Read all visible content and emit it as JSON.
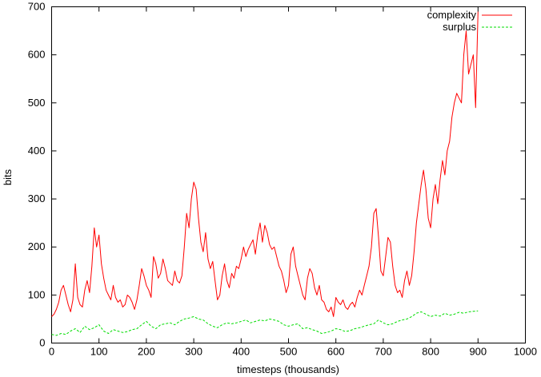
{
  "chart_data": {
    "type": "line",
    "title": "",
    "xlabel": "timesteps (thousands)",
    "ylabel": "bits",
    "xlim": [
      0,
      1000
    ],
    "ylim": [
      0,
      700
    ],
    "xticks": [
      0,
      100,
      200,
      300,
      400,
      500,
      600,
      700,
      800,
      900,
      1000
    ],
    "yticks": [
      0,
      100,
      200,
      300,
      400,
      500,
      600,
      700
    ],
    "grid": false,
    "legend": "top-right",
    "series": [
      {
        "name": "complexity",
        "color": "#ff0000",
        "dash": "solid",
        "x": [
          0,
          5,
          10,
          15,
          20,
          25,
          30,
          35,
          40,
          45,
          50,
          55,
          60,
          65,
          70,
          75,
          80,
          85,
          90,
          95,
          100,
          105,
          110,
          115,
          120,
          125,
          130,
          135,
          140,
          145,
          150,
          155,
          160,
          165,
          170,
          175,
          180,
          185,
          190,
          195,
          200,
          205,
          210,
          215,
          220,
          225,
          230,
          235,
          240,
          245,
          250,
          255,
          260,
          265,
          270,
          275,
          280,
          285,
          290,
          295,
          300,
          305,
          310,
          315,
          320,
          325,
          330,
          335,
          340,
          345,
          350,
          355,
          360,
          365,
          370,
          375,
          380,
          385,
          390,
          395,
          400,
          405,
          410,
          415,
          420,
          425,
          430,
          435,
          440,
          445,
          450,
          455,
          460,
          465,
          470,
          475,
          480,
          485,
          490,
          495,
          500,
          505,
          510,
          515,
          520,
          525,
          530,
          535,
          540,
          545,
          550,
          555,
          560,
          565,
          570,
          575,
          580,
          585,
          590,
          595,
          600,
          605,
          610,
          615,
          620,
          625,
          630,
          635,
          640,
          645,
          650,
          655,
          660,
          665,
          670,
          675,
          680,
          685,
          690,
          695,
          700,
          705,
          710,
          715,
          720,
          725,
          730,
          735,
          740,
          745,
          750,
          755,
          760,
          765,
          770,
          775,
          780,
          785,
          790,
          795,
          800,
          805,
          810,
          815,
          820,
          825,
          830,
          835,
          840,
          845,
          850,
          855,
          860,
          865,
          870,
          875,
          880,
          885,
          890,
          895,
          900
        ],
        "y": [
          55,
          60,
          70,
          85,
          110,
          120,
          100,
          80,
          65,
          90,
          165,
          95,
          80,
          75,
          110,
          130,
          105,
          160,
          240,
          200,
          225,
          165,
          135,
          110,
          100,
          90,
          120,
          95,
          85,
          90,
          75,
          80,
          100,
          95,
          85,
          70,
          90,
          120,
          155,
          140,
          120,
          110,
          95,
          180,
          165,
          135,
          145,
          175,
          155,
          130,
          125,
          120,
          150,
          130,
          125,
          140,
          200,
          270,
          240,
          300,
          335,
          320,
          260,
          210,
          190,
          230,
          175,
          155,
          170,
          130,
          90,
          100,
          140,
          165,
          130,
          115,
          145,
          135,
          160,
          155,
          175,
          200,
          180,
          195,
          205,
          215,
          185,
          225,
          250,
          210,
          245,
          230,
          205,
          195,
          200,
          180,
          160,
          150,
          130,
          105,
          120,
          185,
          200,
          160,
          140,
          120,
          100,
          90,
          135,
          155,
          145,
          115,
          100,
          120,
          90,
          85,
          70,
          65,
          75,
          55,
          95,
          85,
          80,
          90,
          75,
          70,
          80,
          85,
          75,
          95,
          110,
          100,
          120,
          140,
          160,
          200,
          270,
          280,
          220,
          150,
          140,
          180,
          220,
          210,
          160,
          120,
          105,
          110,
          95,
          130,
          150,
          120,
          140,
          190,
          250,
          290,
          330,
          360,
          320,
          260,
          240,
          300,
          330,
          290,
          340,
          380,
          350,
          400,
          420,
          470,
          500,
          520,
          510,
          500,
          600,
          650,
          560,
          580,
          600,
          490,
          690
        ]
      },
      {
        "name": "surplus",
        "color": "#00dd00",
        "dash": "dashed",
        "x": [
          0,
          10,
          20,
          30,
          40,
          50,
          60,
          70,
          80,
          90,
          100,
          110,
          120,
          130,
          140,
          150,
          160,
          170,
          180,
          190,
          200,
          210,
          220,
          230,
          240,
          250,
          260,
          270,
          280,
          290,
          300,
          310,
          320,
          330,
          340,
          350,
          360,
          370,
          380,
          390,
          400,
          410,
          420,
          430,
          440,
          450,
          460,
          470,
          480,
          490,
          500,
          510,
          520,
          530,
          540,
          550,
          560,
          570,
          580,
          590,
          600,
          610,
          620,
          630,
          640,
          650,
          660,
          670,
          680,
          690,
          700,
          710,
          720,
          730,
          740,
          750,
          760,
          770,
          780,
          790,
          800,
          810,
          820,
          830,
          840,
          850,
          860,
          870,
          880,
          890,
          900
        ],
        "y": [
          18,
          16,
          20,
          18,
          25,
          30,
          22,
          35,
          28,
          32,
          38,
          25,
          20,
          28,
          25,
          22,
          24,
          28,
          30,
          38,
          45,
          35,
          30,
          38,
          40,
          42,
          38,
          45,
          50,
          52,
          55,
          50,
          48,
          40,
          35,
          32,
          38,
          42,
          40,
          42,
          45,
          48,
          42,
          45,
          48,
          46,
          50,
          48,
          45,
          38,
          35,
          38,
          40,
          30,
          32,
          28,
          25,
          20,
          22,
          25,
          30,
          28,
          24,
          26,
          30,
          32,
          35,
          38,
          40,
          48,
          42,
          38,
          40,
          45,
          48,
          50,
          55,
          62,
          65,
          60,
          55,
          58,
          56,
          62,
          58,
          60,
          64,
          62,
          65,
          66,
          67
        ]
      }
    ]
  }
}
